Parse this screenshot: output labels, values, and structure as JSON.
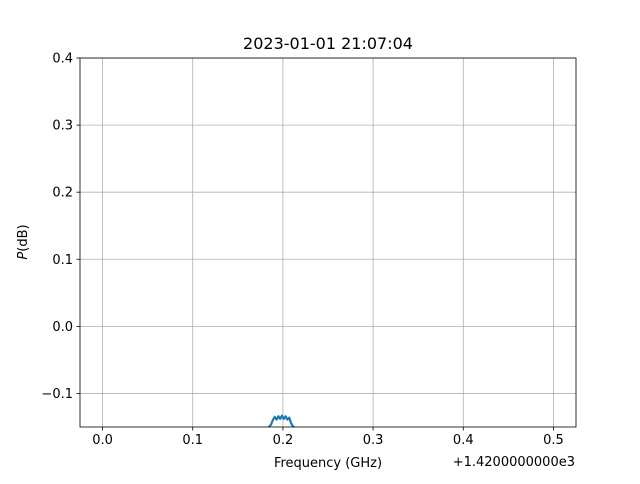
{
  "chart_data": {
    "type": "line",
    "title": "2023-01-01 21:07:04",
    "xlabel": "Frequency (GHz)",
    "ylabel_italic": "P",
    "ylabel_rest": "(dB)",
    "x_offset_label": "+1.4200000000e3",
    "xlim": [
      -0.025,
      0.525
    ],
    "ylim": [
      -0.15,
      0.4
    ],
    "xticks": [
      0.0,
      0.1,
      0.2,
      0.3,
      0.4,
      0.5
    ],
    "xtick_labels": [
      "0.0",
      "0.1",
      "0.2",
      "0.3",
      "0.4",
      "0.5"
    ],
    "yticks": [
      -0.1,
      0.0,
      0.1,
      0.2,
      0.3,
      0.4
    ],
    "ytick_labels": [
      "−0.1",
      "0.0",
      "0.1",
      "0.2",
      "0.3",
      "0.4"
    ],
    "grid": true,
    "series": [
      {
        "color": "#1f77b4",
        "x": [
          0.178,
          0.184,
          0.187,
          0.189,
          0.191,
          0.193,
          0.195,
          0.197,
          0.199,
          0.201,
          0.203,
          0.205,
          0.207,
          0.209,
          0.211,
          0.213
        ],
        "y": [
          -0.151,
          -0.151,
          -0.146,
          -0.139,
          -0.135,
          -0.139,
          -0.134,
          -0.138,
          -0.133,
          -0.138,
          -0.134,
          -0.139,
          -0.136,
          -0.144,
          -0.149,
          -0.151
        ]
      }
    ]
  }
}
